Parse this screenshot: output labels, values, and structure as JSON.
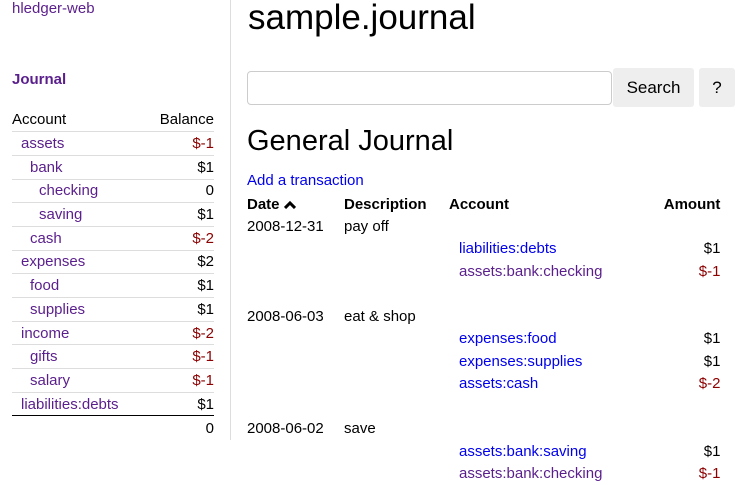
{
  "sidebar": {
    "brand": "hledger-web",
    "journal_link": "Journal",
    "headers": {
      "account": "Account",
      "balance": "Balance"
    },
    "accounts": [
      {
        "name": "assets",
        "depth": 0,
        "balance": "$-1",
        "neg": true
      },
      {
        "name": "bank",
        "depth": 1,
        "balance": "$1",
        "neg": false
      },
      {
        "name": "checking",
        "depth": 2,
        "balance": "0",
        "neg": false
      },
      {
        "name": "saving",
        "depth": 2,
        "balance": "$1",
        "neg": false
      },
      {
        "name": "cash",
        "depth": 1,
        "balance": "$-2",
        "neg": true
      },
      {
        "name": "expenses",
        "depth": 0,
        "balance": "$2",
        "neg": false
      },
      {
        "name": "food",
        "depth": 1,
        "balance": "$1",
        "neg": false
      },
      {
        "name": "supplies",
        "depth": 1,
        "balance": "$1",
        "neg": false
      },
      {
        "name": "income",
        "depth": 0,
        "balance": "$-2",
        "neg": true
      },
      {
        "name": "gifts",
        "depth": 1,
        "balance": "$-1",
        "neg": true
      },
      {
        "name": "salary",
        "depth": 1,
        "balance": "$-1",
        "neg": true
      },
      {
        "name": "liabilities:debts",
        "depth": 0,
        "balance": "$1",
        "neg": false
      }
    ],
    "total": "0"
  },
  "main": {
    "title": "sample.journal",
    "search": {
      "value": "",
      "placeholder": ""
    },
    "search_button": "Search",
    "help_button": "?",
    "heading": "General Journal",
    "add_link": "Add a transaction",
    "columns": {
      "date": "Date",
      "description": "Description",
      "account": "Account",
      "amount": "Amount"
    },
    "sort_icon": "chevron-up-icon",
    "transactions": [
      {
        "date": "2008-12-31",
        "description": "pay off",
        "postings": [
          {
            "account": "liabilities:debts",
            "amount": "$1",
            "neg": false,
            "visited": false
          },
          {
            "account": "assets:bank:checking",
            "amount": "$-1",
            "neg": true,
            "visited": true
          }
        ]
      },
      {
        "date": "2008-06-03",
        "description": "eat & shop",
        "postings": [
          {
            "account": "expenses:food",
            "amount": "$1",
            "neg": false,
            "visited": false
          },
          {
            "account": "expenses:supplies",
            "amount": "$1",
            "neg": false,
            "visited": false
          },
          {
            "account": "assets:cash",
            "amount": "$-2",
            "neg": true,
            "visited": false
          }
        ]
      },
      {
        "date": "2008-06-02",
        "description": "save",
        "postings": [
          {
            "account": "assets:bank:saving",
            "amount": "$1",
            "neg": false,
            "visited": false
          },
          {
            "account": "assets:bank:checking",
            "amount": "$-1",
            "neg": true,
            "visited": true
          }
        ]
      }
    ]
  },
  "colors": {
    "visited": "#5a1f8c",
    "link": "#0000ee",
    "negative": "#8b0000"
  }
}
